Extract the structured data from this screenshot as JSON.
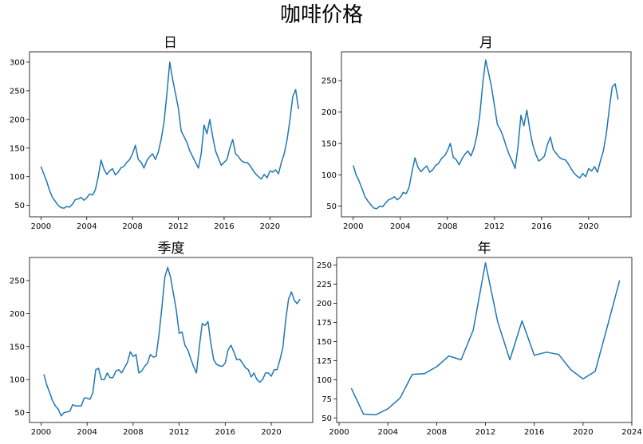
{
  "figure": {
    "title": "咖啡价格"
  },
  "colors": {
    "series": "#1f77b4"
  },
  "chart_data": [
    {
      "type": "line",
      "title": "日",
      "xlabel": "",
      "ylabel": "",
      "xlim": [
        1999.0,
        2023.6
      ],
      "ylim": [
        30,
        318
      ],
      "xticks": [
        2000,
        2004,
        2008,
        2012,
        2016,
        2020
      ],
      "yticks": [
        50,
        100,
        150,
        200,
        250,
        300
      ],
      "grid": false,
      "series": [
        {
          "x": [
            2000.0,
            2000.25,
            2000.5,
            2000.75,
            2001.0,
            2001.25,
            2001.5,
            2001.75,
            2002.0,
            2002.25,
            2002.5,
            2002.75,
            2003.0,
            2003.25,
            2003.5,
            2003.75,
            2004.0,
            2004.25,
            2004.5,
            2004.75,
            2005.0,
            2005.25,
            2005.5,
            2005.75,
            2006.0,
            2006.25,
            2006.5,
            2006.75,
            2007.0,
            2007.25,
            2007.5,
            2007.75,
            2008.0,
            2008.25,
            2008.5,
            2008.75,
            2009.0,
            2009.25,
            2009.5,
            2009.75,
            2010.0,
            2010.25,
            2010.5,
            2010.75,
            2011.0,
            2011.25,
            2011.5,
            2011.75,
            2012.0,
            2012.25,
            2012.5,
            2012.75,
            2013.0,
            2013.25,
            2013.5,
            2013.75,
            2014.0,
            2014.25,
            2014.5,
            2014.75,
            2015.0,
            2015.25,
            2015.5,
            2015.75,
            2016.0,
            2016.25,
            2016.5,
            2016.75,
            2017.0,
            2017.25,
            2017.5,
            2017.75,
            2018.0,
            2018.25,
            2018.5,
            2018.75,
            2019.0,
            2019.25,
            2019.5,
            2019.75,
            2020.0,
            2020.25,
            2020.5,
            2020.75,
            2021.0,
            2021.25,
            2021.5,
            2021.75,
            2022.0,
            2022.25,
            2022.5
          ],
          "y": [
            118,
            105,
            92,
            76,
            64,
            57,
            50,
            46,
            45,
            48,
            47,
            52,
            60,
            61,
            64,
            59,
            63,
            70,
            68,
            77,
            100,
            129,
            113,
            104,
            110,
            114,
            103,
            108,
            116,
            118,
            125,
            130,
            140,
            155,
            130,
            125,
            115,
            128,
            135,
            140,
            130,
            143,
            165,
            195,
            245,
            300,
            270,
            245,
            220,
            180,
            170,
            160,
            145,
            135,
            125,
            115,
            140,
            190,
            175,
            200,
            170,
            145,
            132,
            120,
            125,
            130,
            150,
            165,
            140,
            135,
            128,
            125,
            125,
            120,
            112,
            105,
            100,
            96,
            104,
            98,
            110,
            108,
            112,
            105,
            125,
            140,
            165,
            200,
            240,
            252,
            218
          ]
        }
      ]
    },
    {
      "type": "line",
      "title": "月",
      "xlabel": "",
      "ylabel": "",
      "xlim": [
        1999.0,
        2023.6
      ],
      "ylim": [
        33,
        296
      ],
      "xticks": [
        2000,
        2004,
        2008,
        2012,
        2016,
        2020
      ],
      "yticks": [
        50,
        100,
        150,
        200,
        250
      ],
      "grid": false,
      "series": [
        {
          "x": [
            2000.0,
            2000.25,
            2000.5,
            2000.75,
            2001.0,
            2001.25,
            2001.5,
            2001.75,
            2002.0,
            2002.25,
            2002.5,
            2002.75,
            2003.0,
            2003.25,
            2003.5,
            2003.75,
            2004.0,
            2004.25,
            2004.5,
            2004.75,
            2005.0,
            2005.25,
            2005.5,
            2005.75,
            2006.0,
            2006.25,
            2006.5,
            2006.75,
            2007.0,
            2007.25,
            2007.5,
            2007.75,
            2008.0,
            2008.25,
            2008.5,
            2008.75,
            2009.0,
            2009.25,
            2009.5,
            2009.75,
            2010.0,
            2010.25,
            2010.5,
            2010.75,
            2011.0,
            2011.25,
            2011.5,
            2011.75,
            2012.0,
            2012.25,
            2012.5,
            2012.75,
            2013.0,
            2013.25,
            2013.5,
            2013.75,
            2014.0,
            2014.25,
            2014.5,
            2014.75,
            2015.0,
            2015.25,
            2015.5,
            2015.75,
            2016.0,
            2016.25,
            2016.5,
            2016.75,
            2017.0,
            2017.25,
            2017.5,
            2017.75,
            2018.0,
            2018.25,
            2018.5,
            2018.75,
            2019.0,
            2019.25,
            2019.5,
            2019.75,
            2020.0,
            2020.25,
            2020.5,
            2020.75,
            2021.0,
            2021.25,
            2021.5,
            2021.75,
            2022.0,
            2022.25,
            2022.5
          ],
          "y": [
            115,
            100,
            90,
            78,
            65,
            58,
            52,
            47,
            46,
            50,
            49,
            55,
            60,
            62,
            65,
            60,
            64,
            72,
            70,
            80,
            105,
            127,
            112,
            105,
            110,
            114,
            104,
            108,
            115,
            118,
            126,
            130,
            138,
            150,
            128,
            124,
            116,
            126,
            133,
            138,
            130,
            142,
            162,
            195,
            245,
            283,
            262,
            240,
            210,
            180,
            172,
            160,
            145,
            132,
            122,
            110,
            145,
            195,
            178,
            203,
            172,
            148,
            133,
            122,
            125,
            130,
            148,
            160,
            140,
            134,
            128,
            125,
            124,
            118,
            110,
            103,
            98,
            95,
            102,
            97,
            110,
            106,
            113,
            104,
            122,
            138,
            165,
            205,
            240,
            245,
            220
          ]
        }
      ]
    },
    {
      "type": "line",
      "title": "季度",
      "xlabel": "",
      "ylabel": "",
      "xlim": [
        1999.0,
        2023.6
      ],
      "ylim": [
        35,
        285
      ],
      "xticks": [
        2000,
        2004,
        2008,
        2012,
        2016,
        2020
      ],
      "yticks": [
        50,
        100,
        150,
        200,
        250
      ],
      "grid": false,
      "series": [
        {
          "x": [
            2000.25,
            2000.5,
            2000.75,
            2001.0,
            2001.25,
            2001.5,
            2001.75,
            2002.0,
            2002.25,
            2002.5,
            2002.75,
            2003.0,
            2003.25,
            2003.5,
            2003.75,
            2004.0,
            2004.25,
            2004.5,
            2004.75,
            2005.0,
            2005.25,
            2005.5,
            2005.75,
            2006.0,
            2006.25,
            2006.5,
            2006.75,
            2007.0,
            2007.25,
            2007.5,
            2007.75,
            2008.0,
            2008.25,
            2008.5,
            2008.75,
            2009.0,
            2009.25,
            2009.5,
            2009.75,
            2010.0,
            2010.25,
            2010.5,
            2010.75,
            2011.0,
            2011.25,
            2011.5,
            2011.75,
            2012.0,
            2012.25,
            2012.5,
            2012.75,
            2013.0,
            2013.25,
            2013.5,
            2013.75,
            2014.0,
            2014.25,
            2014.5,
            2014.75,
            2015.0,
            2015.25,
            2015.5,
            2015.75,
            2016.0,
            2016.25,
            2016.5,
            2016.75,
            2017.0,
            2017.25,
            2017.5,
            2017.75,
            2018.0,
            2018.25,
            2018.5,
            2018.75,
            2019.0,
            2019.25,
            2019.5,
            2019.75,
            2020.0,
            2020.25,
            2020.5,
            2020.75,
            2021.0,
            2021.25,
            2021.5,
            2021.75,
            2022.0,
            2022.25,
            2022.5
          ],
          "y": [
            108,
            92,
            80,
            68,
            60,
            55,
            45,
            50,
            51,
            52,
            62,
            60,
            60,
            60,
            72,
            72,
            70,
            80,
            115,
            117,
            100,
            100,
            110,
            103,
            103,
            113,
            115,
            110,
            118,
            126,
            142,
            135,
            138,
            110,
            113,
            120,
            125,
            138,
            134,
            135,
            168,
            210,
            255,
            270,
            255,
            230,
            205,
            170,
            172,
            152,
            145,
            132,
            120,
            110,
            150,
            185,
            182,
            188,
            155,
            130,
            123,
            121,
            120,
            125,
            145,
            152,
            142,
            130,
            131,
            125,
            118,
            115,
            104,
            110,
            100,
            96,
            100,
            110,
            110,
            105,
            115,
            115,
            130,
            148,
            190,
            222,
            233,
            220,
            215,
            222
          ]
        }
      ]
    },
    {
      "type": "line",
      "title": "年",
      "xlabel": "",
      "ylabel": "",
      "xlim": [
        1999.8,
        2024.0
      ],
      "ylim": [
        44,
        260
      ],
      "xticks": [
        2000,
        2004,
        2008,
        2012,
        2016,
        2020,
        2024
      ],
      "yticks": [
        50,
        75,
        100,
        125,
        150,
        175,
        200,
        225,
        250
      ],
      "grid": false,
      "series": [
        {
          "x": [
            2001,
            2002,
            2003,
            2004,
            2005,
            2006,
            2007,
            2008,
            2009,
            2010,
            2011,
            2012,
            2013,
            2014,
            2015,
            2016,
            2017,
            2018,
            2019,
            2020,
            2021,
            2022,
            2023
          ],
          "y": [
            89,
            55,
            54,
            62,
            76,
            107,
            108,
            117,
            131,
            126,
            165,
            253,
            176,
            126,
            177,
            132,
            136,
            133,
            113,
            101,
            111,
            170,
            230
          ]
        }
      ]
    }
  ]
}
